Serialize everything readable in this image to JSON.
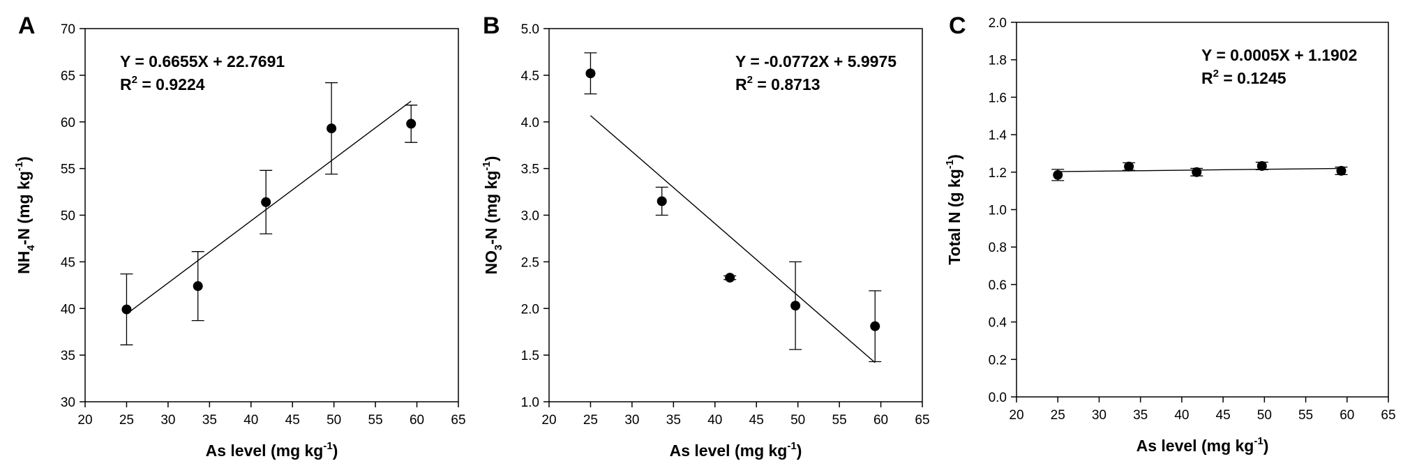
{
  "chart_data": [
    {
      "type": "scatter",
      "panel_label": "A",
      "xlabel": {
        "text": "As level (mg kg",
        "sup": "-1",
        "end": ")"
      },
      "ylabel": {
        "base": "NH",
        "sub": "4",
        "mid": "-N (mg kg",
        "sup": "-1",
        "end": ")"
      },
      "xlim": [
        20,
        65
      ],
      "ylim": [
        30,
        70
      ],
      "xticks": [
        20,
        25,
        30,
        35,
        40,
        45,
        50,
        55,
        60,
        65
      ],
      "yticks": [
        30,
        35,
        40,
        45,
        50,
        55,
        60,
        65,
        70
      ],
      "ytick_decimals": 0,
      "points": [
        {
          "x": 25.0,
          "y": 39.9,
          "err": 3.8
        },
        {
          "x": 33.6,
          "y": 42.4,
          "err": 3.7
        },
        {
          "x": 41.8,
          "y": 51.4,
          "err": 3.4
        },
        {
          "x": 49.7,
          "y": 59.3,
          "err": 4.9
        },
        {
          "x": 59.3,
          "y": 59.8,
          "err": 2.0
        }
      ],
      "fit": {
        "slope": 0.6655,
        "intercept": 22.7691,
        "x_range": [
          25.0,
          59.3
        ]
      },
      "equation": "Y = 0.6655X + 22.7691",
      "r2_label": "R",
      "r2_sup": "2",
      "r2_value": " = 0.9224",
      "annotation_position": "top-left"
    },
    {
      "type": "scatter",
      "panel_label": "B",
      "xlabel": {
        "text": "As level (mg kg",
        "sup": "-1",
        "end": ")"
      },
      "ylabel": {
        "base": "NO",
        "sub": "3",
        "mid": "-N (mg kg",
        "sup": "-1",
        "end": ")"
      },
      "xlim": [
        20,
        65
      ],
      "ylim": [
        1.0,
        5.0
      ],
      "xticks": [
        20,
        25,
        30,
        35,
        40,
        45,
        50,
        55,
        60,
        65
      ],
      "yticks": [
        1.0,
        1.5,
        2.0,
        2.5,
        3.0,
        3.5,
        4.0,
        4.5,
        5.0
      ],
      "ytick_decimals": 1,
      "points": [
        {
          "x": 25.0,
          "y": 4.52,
          "err": 0.22
        },
        {
          "x": 33.6,
          "y": 3.15,
          "err": 0.15
        },
        {
          "x": 41.8,
          "y": 2.33,
          "err": 0.02
        },
        {
          "x": 49.7,
          "y": 2.03,
          "err": 0.47
        },
        {
          "x": 59.3,
          "y": 1.81,
          "err": 0.38
        }
      ],
      "fit": {
        "slope": -0.0772,
        "intercept": 5.9975,
        "x_range": [
          25.0,
          59.3
        ]
      },
      "equation": "Y = -0.0772X + 5.9975",
      "r2_label": "R",
      "r2_sup": "2",
      "r2_value": " = 0.8713",
      "annotation_position": "top-right"
    },
    {
      "type": "scatter",
      "panel_label": "C",
      "xlabel": {
        "text": "As level (mg kg",
        "sup": "-1",
        "end": ")"
      },
      "ylabel": {
        "base": "Total N (g kg",
        "sub": "",
        "mid": "",
        "sup": "-1",
        "end": ")"
      },
      "xlim": [
        20,
        65
      ],
      "ylim": [
        0.0,
        2.0
      ],
      "xticks": [
        20,
        25,
        30,
        35,
        40,
        45,
        50,
        55,
        60,
        65
      ],
      "yticks": [
        0.0,
        0.2,
        0.4,
        0.6,
        0.8,
        1.0,
        1.2,
        1.4,
        1.6,
        1.8,
        2.0
      ],
      "ytick_decimals": 1,
      "points": [
        {
          "x": 25.0,
          "y": 1.185,
          "err": 0.03
        },
        {
          "x": 33.6,
          "y": 1.23,
          "err": 0.02
        },
        {
          "x": 41.8,
          "y": 1.2,
          "err": 0.02
        },
        {
          "x": 49.7,
          "y": 1.233,
          "err": 0.02
        },
        {
          "x": 59.3,
          "y": 1.207,
          "err": 0.02
        }
      ],
      "fit": {
        "slope": 0.0005,
        "intercept": 1.1902,
        "x_range": [
          25.0,
          59.3
        ]
      },
      "equation": "Y = 0.0005X + 1.1902",
      "r2_label": "R",
      "r2_sup": "2",
      "r2_value": " = 0.1245",
      "annotation_position": "top-right"
    }
  ]
}
